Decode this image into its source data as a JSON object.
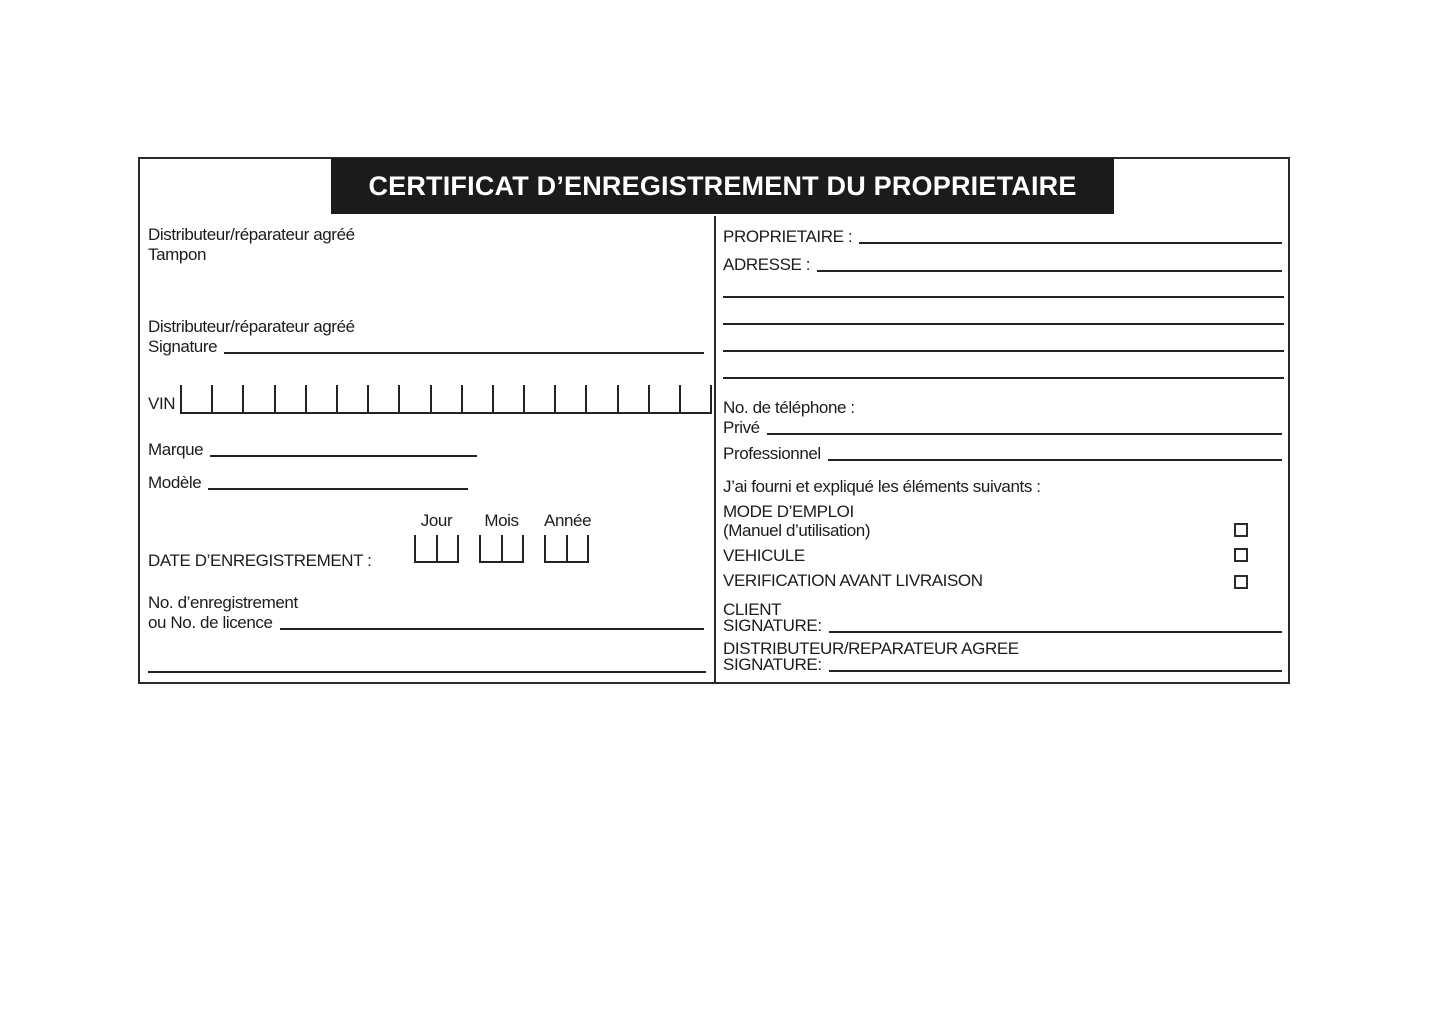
{
  "header": {
    "title": "CERTIFICAT D’ENREGISTREMENT DU PROPRIETAIRE"
  },
  "left": {
    "dealer_stamp": {
      "line1": "Distributeur/réparateur agréé",
      "line2": "Tampon"
    },
    "dealer_signature": {
      "line1": "Distributeur/réparateur agréé",
      "line2": "Signature"
    },
    "vin_label": "VIN",
    "vin_cell_count": 17,
    "marque_label": "Marque",
    "modele_label": "Modèle",
    "date": {
      "label": "DATE D’ENREGISTREMENT :",
      "groups": [
        {
          "label": "Jour",
          "cells": 2
        },
        {
          "label": "Mois",
          "cells": 2
        },
        {
          "label": "Année",
          "cells": 2
        }
      ]
    },
    "registration_no": {
      "line1": "No. d’enregistrement",
      "line2": "ou No. de licence"
    }
  },
  "right": {
    "proprietaire_label": "PROPRIETAIRE :",
    "adresse_label": "ADRESSE :",
    "extra_address_lines": 4,
    "telephone_label": "No. de téléphone :",
    "prive_label": "Privé",
    "professionnel_label": "Professionnel",
    "provided_intro": "J’ai fourni et expliqué les éléments suivants :",
    "checklist": [
      {
        "label": "MODE D’EMPLOI",
        "sublabel": "(Manuel d’utilisation)",
        "checked": false
      },
      {
        "label": "VEHICULE",
        "checked": false
      },
      {
        "label": "VERIFICATION AVANT LIVRAISON",
        "checked": false
      }
    ],
    "client_label": "CLIENT",
    "client_signature_label": "SIGNATURE:",
    "dealer_agree_label": "DISTRIBUTEUR/REPARATEUR AGREE",
    "dealer_signature_label": "SIGNATURE:"
  },
  "colors": {
    "banner_bg": "#1b1b1b",
    "banner_text": "#ffffff",
    "ink": "#1c1c1c"
  }
}
